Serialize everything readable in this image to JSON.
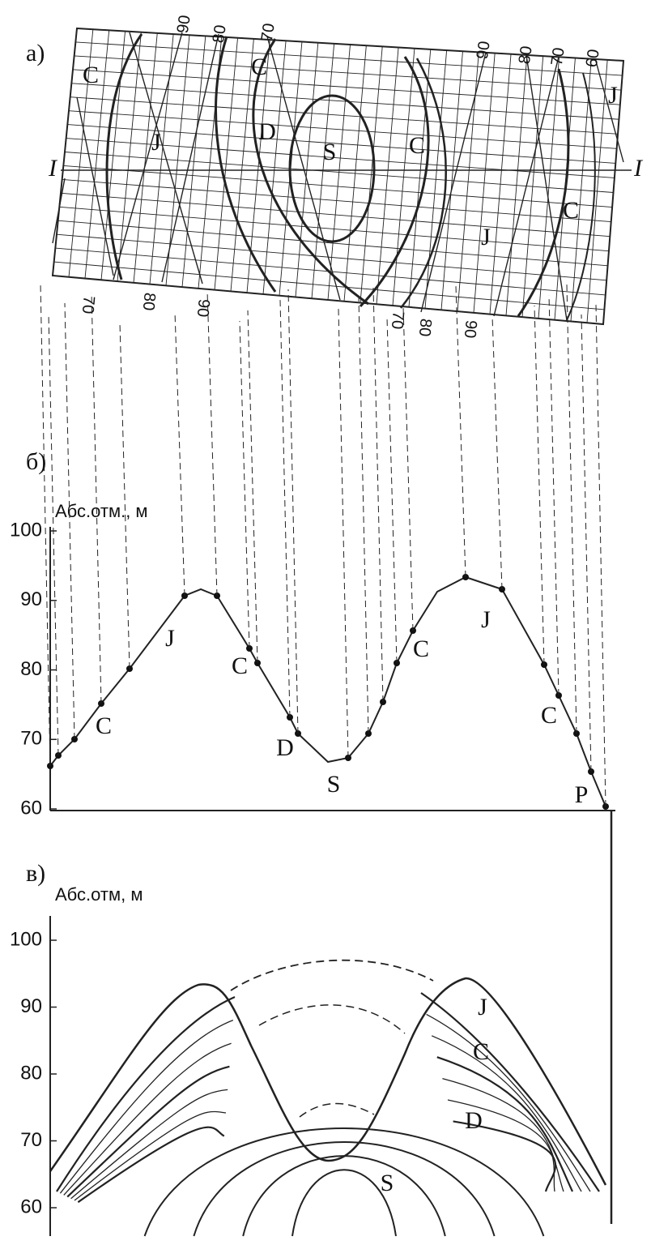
{
  "panel_a": {
    "label": "а)",
    "section_line": [
      "I",
      "I"
    ],
    "contour_labels_top": [
      "90",
      "80",
      "70",
      "90",
      "80",
      "70",
      "60"
    ],
    "contour_labels_bottom": [
      "70",
      "80",
      "90",
      "70",
      "80",
      "90"
    ],
    "units": [
      "C",
      "C",
      "J",
      "D",
      "S",
      "C",
      "J",
      "C",
      "J"
    ]
  },
  "panel_b": {
    "label": "б)",
    "axis_label": "Абс.отм., м",
    "yticks": [
      100,
      90,
      80,
      70,
      60
    ],
    "units": [
      "J",
      "C",
      "C",
      "D",
      "S",
      "C",
      "J",
      "C",
      "P"
    ]
  },
  "panel_c": {
    "label": "в)",
    "axis_label": "Абс.отм, м",
    "yticks": [
      100,
      90,
      80,
      70,
      60
    ],
    "units": [
      "J",
      "C",
      "D",
      "S"
    ]
  }
}
